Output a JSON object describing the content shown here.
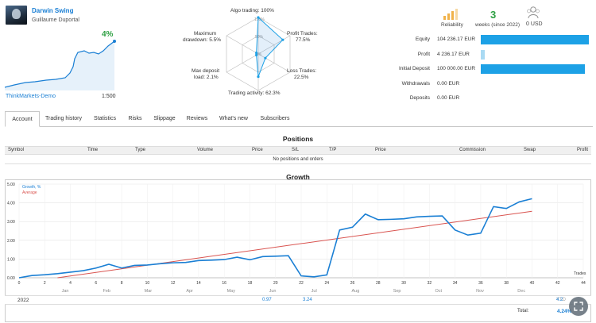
{
  "header": {
    "signal_name": "Darwin Swing",
    "author": "Guillaume Duportal",
    "growth": "4%",
    "broker": "ThinkMarkets-Demo",
    "leverage": "1:500"
  },
  "radar": {
    "algo_trading": "Algo trading: 100%",
    "profit_trades_title": "Profit Trades:",
    "profit_trades_value": "77.5%",
    "loss_trades_title": "Loss Trades:",
    "loss_trades_value": "22.5%",
    "trading_activity": "Trading activity: 62.3%",
    "max_deposit_title": "Max deposit",
    "max_deposit_value": "load: 2.1%",
    "max_drawdown_title": "Maximum",
    "max_drawdown_value": "drawdown: 5.5%",
    "ring_labels": [
      "100%",
      "50%",
      "0%"
    ],
    "values": {
      "algo": 1.0,
      "profit": 0.775,
      "loss": 0.225,
      "activity": 0.623,
      "deposit": 0.021,
      "drawdown": 0.055
    }
  },
  "stats": {
    "reliability_label": "Reliability",
    "weeks_value": "3",
    "weeks_label": "weeks (since 2022)",
    "subscribers_value": "0 USD",
    "rows": [
      {
        "label": "Equity",
        "value": "104 236.17 EUR",
        "bar": 1.0,
        "style": "dark"
      },
      {
        "label": "Profit",
        "value": "4 236.17 EUR",
        "bar": 0.04,
        "style": "light"
      },
      {
        "label": "Initial Deposit",
        "value": "100 000.00 EUR",
        "bar": 0.96,
        "style": "dark"
      },
      {
        "label": "Withdrawals",
        "value": "0.00 EUR",
        "bar": 0,
        "style": "light"
      },
      {
        "label": "Deposits",
        "value": "0.00 EUR",
        "bar": 0,
        "style": "light"
      }
    ]
  },
  "tabs": [
    "Account",
    "Trading history",
    "Statistics",
    "Risks",
    "Slippage",
    "Reviews",
    "What's new",
    "Subscribers"
  ],
  "positions": {
    "title": "Positions",
    "columns": [
      "Symbol",
      "Time",
      "Type",
      "Volume",
      "Price",
      "S/L",
      "T/P",
      "Price",
      "Commission",
      "Swap",
      "Profit"
    ],
    "empty": "No positions and orders"
  },
  "growth": {
    "title": "Growth",
    "legend_growth": "Growth, %",
    "legend_average": "Average",
    "trades_label": "Trades",
    "year": "2022",
    "jul_value1": "0.97",
    "jul_value2": "3.24",
    "ytd_label": "YTD",
    "ytd_value": "4.2",
    "total_label": "Total:",
    "total_value": "4.24%",
    "months": [
      "Jan",
      "Feb",
      "Mar",
      "Apr",
      "May",
      "Jun",
      "Jul",
      "Aug",
      "Sep",
      "Oct",
      "Nov",
      "Dec"
    ]
  },
  "chart_data": {
    "type": "line",
    "xlabel": "Trades",
    "ylabel": "",
    "xlim": [
      0,
      44
    ],
    "ylim": [
      0,
      5
    ],
    "x_ticks": [
      0,
      2,
      4,
      6,
      8,
      10,
      12,
      14,
      16,
      18,
      20,
      22,
      24,
      26,
      28,
      30,
      32,
      34,
      36,
      38,
      40,
      42,
      44
    ],
    "y_ticks": [
      "0.00",
      "1.00",
      "2.00",
      "3.00",
      "4.00",
      "5.00"
    ],
    "series": [
      {
        "name": "Growth, %",
        "color": "#1a7fd4",
        "x": [
          0,
          1,
          2,
          3,
          4,
          5,
          6,
          7,
          8,
          9,
          10,
          11,
          12,
          13,
          14,
          15,
          16,
          17,
          18,
          19,
          20,
          21,
          22,
          23,
          24,
          25,
          26,
          27,
          28,
          29,
          30,
          31,
          32,
          33,
          34,
          35,
          36,
          37,
          38,
          39,
          40
        ],
        "y": [
          0.0,
          0.12,
          0.16,
          0.22,
          0.3,
          0.38,
          0.52,
          0.72,
          0.52,
          0.66,
          0.68,
          0.75,
          0.8,
          0.82,
          0.92,
          0.94,
          0.97,
          1.1,
          0.96,
          1.13,
          1.15,
          1.18,
          0.1,
          0.05,
          0.15,
          2.55,
          2.7,
          3.4,
          3.1,
          3.12,
          3.15,
          3.25,
          3.28,
          3.3,
          2.55,
          2.28,
          2.38,
          3.8,
          3.7,
          4.05,
          4.22
        ]
      },
      {
        "name": "Average",
        "color": "#d9534f",
        "x": [
          3,
          40
        ],
        "y": [
          0.0,
          3.55
        ]
      }
    ]
  },
  "colors": {
    "accent": "#1a7fd4",
    "positive": "#2ea043",
    "bar": "#1da1e6",
    "bar_light": "#a9daf3",
    "average": "#d9534f"
  }
}
